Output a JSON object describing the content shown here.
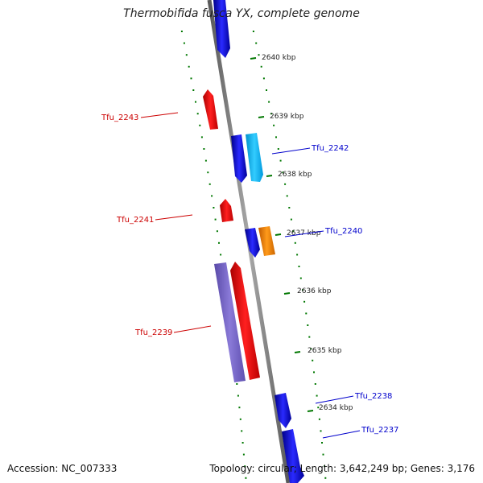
{
  "title": "Thermobifida fusca YX, complete genome",
  "footer": {
    "accession": "Accession: NC_007333",
    "summary": "Topology: circular; Length: 3,642,249 bp; Genes: 3,176"
  },
  "ticks": [
    {
      "label": "2640 kbp"
    },
    {
      "label": "2639 kbp"
    },
    {
      "label": "2638 kbp"
    },
    {
      "label": "2637 kbp"
    },
    {
      "label": "2636 kbp"
    },
    {
      "label": "2635 kbp"
    },
    {
      "label": "2634 kbp"
    }
  ],
  "genes": [
    {
      "name": "Tfu_2243",
      "strand": "-",
      "color": "#ff0000"
    },
    {
      "name": "Tfu_2242",
      "strand": "+",
      "color": "#0000ff"
    },
    {
      "name": "Tfu_2241",
      "strand": "-",
      "color": "#ff0000"
    },
    {
      "name": "Tfu_2240",
      "strand": "+",
      "color": "#0000ff"
    },
    {
      "name": "Tfu_2239",
      "strand": "-",
      "color": "#ff0000"
    },
    {
      "name": "Tfu_2238",
      "strand": "+",
      "color": "#0000ff"
    },
    {
      "name": "Tfu_2237",
      "strand": "+",
      "color": "#0000ff"
    }
  ],
  "colors": {
    "backbone": "#808080",
    "tick": "#007700",
    "cds_forward": "#0000ff",
    "cds_reverse": "#ff0000",
    "light_blue": "#00bfff",
    "orange": "#ff8c00",
    "purple": "#7b68cc"
  }
}
